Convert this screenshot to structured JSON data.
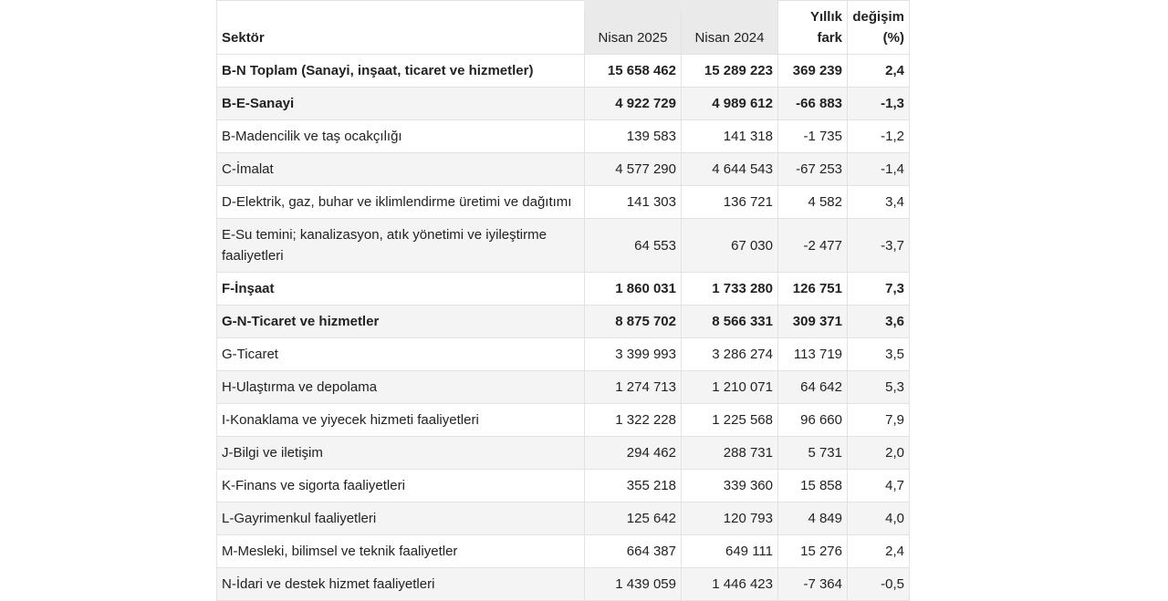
{
  "table": {
    "header": [
      "Sektör",
      "Nisan 2025",
      "Nisan 2024",
      "Yıllık fark",
      "değişim (%)"
    ],
    "rows": [
      {
        "bold": true,
        "cells": [
          "B-N Toplam (Sanayi, inşaat, ticaret ve hizmetler)",
          "15 658 462",
          "15 289 223",
          "369 239",
          "2,4"
        ]
      },
      {
        "bold": true,
        "cells": [
          "B-E-Sanayi",
          "4 922 729",
          "4 989 612",
          "-66 883",
          "-1,3"
        ]
      },
      {
        "bold": false,
        "cells": [
          "B-Madencilik ve taş ocakçılığı",
          "139 583",
          "141 318",
          "-1 735",
          "-1,2"
        ]
      },
      {
        "bold": false,
        "cells": [
          "C-İmalat",
          "4 577 290",
          "4 644 543",
          "-67 253",
          "-1,4"
        ]
      },
      {
        "bold": false,
        "cells": [
          "D-Elektrik, gaz, buhar ve iklimlendirme üretimi ve dağıtımı",
          "141 303",
          "136 721",
          "4 582",
          "3,4"
        ]
      },
      {
        "bold": false,
        "cells": [
          "E-Su temini; kanalizasyon, atık yönetimi ve iyileştirme faaliyetleri",
          "64 553",
          "67 030",
          "-2 477",
          "-3,7"
        ]
      },
      {
        "bold": true,
        "cells": [
          "F-İnşaat",
          "1 860 031",
          "1 733 280",
          "126 751",
          "7,3"
        ]
      },
      {
        "bold": true,
        "cells": [
          "G-N-Ticaret ve hizmetler",
          "8 875 702",
          "8 566 331",
          "309 371",
          "3,6"
        ]
      },
      {
        "bold": false,
        "cells": [
          "G-Ticaret",
          "3 399 993",
          "3 286 274",
          "113 719",
          "3,5"
        ]
      },
      {
        "bold": false,
        "cells": [
          "H-Ulaştırma ve depolama",
          "1 274 713",
          "1 210 071",
          "64 642",
          "5,3"
        ]
      },
      {
        "bold": false,
        "cells": [
          "I-Konaklama ve yiyecek hizmeti faaliyetleri",
          "1 322 228",
          "1 225 568",
          "96 660",
          "7,9"
        ]
      },
      {
        "bold": false,
        "cells": [
          "J-Bilgi ve iletişim",
          "294 462",
          "288 731",
          "5 731",
          "2,0"
        ]
      },
      {
        "bold": false,
        "cells": [
          "K-Finans ve sigorta faaliyetleri",
          "355 218",
          "339 360",
          "15 858",
          "4,7"
        ]
      },
      {
        "bold": false,
        "cells": [
          "L-Gayrimenkul faaliyetleri",
          "125 642",
          "120 793",
          "4 849",
          "4,0"
        ]
      },
      {
        "bold": false,
        "cells": [
          "M-Mesleki, bilimsel ve teknik faaliyetler",
          "664 387",
          "649 111",
          "15 276",
          "2,4"
        ]
      },
      {
        "bold": false,
        "cells": [
          "N-İdari ve destek hizmet faaliyetleri",
          "1 439 059",
          "1 446 423",
          "-7 364",
          "-0,5"
        ]
      }
    ]
  }
}
